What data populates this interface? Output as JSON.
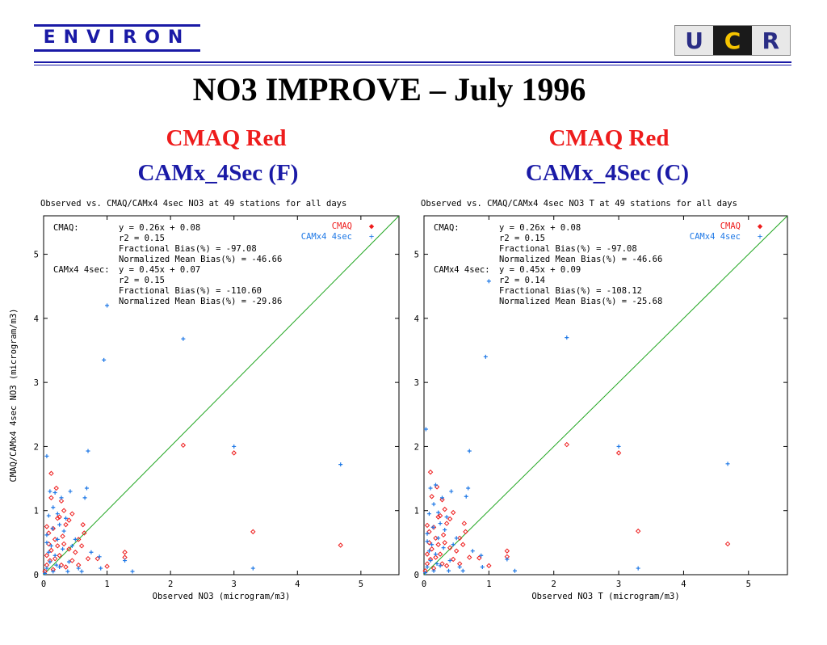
{
  "header": {
    "left_logo_text": "ENVIRON",
    "right_logo_letters": [
      "U",
      "C",
      "R"
    ],
    "title": "NO3 IMPROVE – July 1996"
  },
  "panels": [
    {
      "line1": "CMAQ Red",
      "line2": "CAMx_4Sec (F)"
    },
    {
      "line1": "CMAQ Red",
      "line2": "CAMx_4Sec (C)"
    }
  ],
  "colors": {
    "cmaq": "#ee1c1c",
    "camx": "#1e78e6",
    "line": "#1fa51f",
    "brand_blue": "#1a1aa6"
  },
  "chart_data": [
    {
      "type": "scatter",
      "title": "Observed vs. CMAQ/CAMx4 4sec NO3 at 49 stations for all days",
      "xlabel": "Observed NO3  (microgram/m3)",
      "ylabel": "CMAQ/CAMx4 4sec NO3  (microgram/m3)",
      "xlim": [
        0,
        5.6
      ],
      "ylim": [
        0,
        5.6
      ],
      "xticks": [
        "0",
        "1",
        "2",
        "3",
        "4",
        "5"
      ],
      "yticks": [
        "0",
        "1",
        "2",
        "3",
        "4",
        "5"
      ],
      "legend": [
        "CMAQ",
        "CAMx4 4sec"
      ],
      "stats": [
        [
          "CMAQ:",
          "y = 0.26x + 0.08"
        ],
        [
          "",
          "r2 = 0.15"
        ],
        [
          "",
          "Fractional Bias(%) = -97.08"
        ],
        [
          "",
          "Normalized Mean Bias(%) = -46.66"
        ],
        [
          "CAMx4 4sec:",
          "y = 0.45x + 0.07"
        ],
        [
          "",
          "r2 = 0.15"
        ],
        [
          "",
          "Fractional Bias(%) = -110.60"
        ],
        [
          "",
          "Normalized Mean Bias(%) = -29.86"
        ]
      ],
      "series": [
        {
          "name": "CMAQ",
          "points": [
            [
              2.2,
              2.02
            ],
            [
              3.0,
              1.9
            ],
            [
              3.3,
              0.67
            ],
            [
              4.68,
              0.46
            ],
            [
              1.28,
              0.35
            ],
            [
              1.28,
              0.27
            ],
            [
              0.85,
              0.25
            ],
            [
              1.0,
              0.13
            ],
            [
              0.62,
              0.78
            ],
            [
              0.64,
              0.65
            ],
            [
              0.55,
              0.55
            ],
            [
              0.6,
              0.45
            ],
            [
              0.45,
              0.95
            ],
            [
              0.4,
              0.85
            ],
            [
              0.32,
              1.0
            ],
            [
              0.12,
              1.58
            ],
            [
              0.2,
              1.35
            ],
            [
              0.28,
              1.15
            ],
            [
              0.25,
              0.9
            ],
            [
              0.35,
              0.78
            ],
            [
              0.5,
              0.35
            ],
            [
              0.7,
              0.25
            ],
            [
              0.3,
              0.6
            ],
            [
              0.15,
              0.72
            ],
            [
              0.18,
              0.55
            ],
            [
              0.08,
              0.48
            ],
            [
              0.22,
              0.45
            ],
            [
              0.12,
              0.38
            ],
            [
              0.05,
              0.3
            ],
            [
              0.25,
              0.3
            ],
            [
              0.1,
              0.22
            ],
            [
              0.05,
              0.15
            ],
            [
              0.4,
              0.4
            ],
            [
              0.45,
              0.22
            ],
            [
              0.35,
              0.12
            ],
            [
              0.02,
              0.05
            ],
            [
              0.15,
              0.08
            ],
            [
              0.28,
              0.15
            ],
            [
              0.08,
              0.65
            ],
            [
              0.55,
              0.15
            ],
            [
              0.22,
              0.88
            ],
            [
              0.12,
              1.2
            ],
            [
              0.05,
              0.75
            ],
            [
              0.18,
              0.25
            ],
            [
              0.32,
              0.48
            ]
          ]
        },
        {
          "name": "CAMx4 4sec",
          "points": [
            [
              1.0,
              4.2
            ],
            [
              2.2,
              3.68
            ],
            [
              0.95,
              3.35
            ],
            [
              3.0,
              2.0
            ],
            [
              4.68,
              1.72
            ],
            [
              0.7,
              1.93
            ],
            [
              0.05,
              1.85
            ],
            [
              3.3,
              0.1
            ],
            [
              1.28,
              0.22
            ],
            [
              1.4,
              0.05
            ],
            [
              0.68,
              1.35
            ],
            [
              0.42,
              1.3
            ],
            [
              0.1,
              1.3
            ],
            [
              0.18,
              1.28
            ],
            [
              0.28,
              1.2
            ],
            [
              0.15,
              1.05
            ],
            [
              0.65,
              1.2
            ],
            [
              0.08,
              0.92
            ],
            [
              0.25,
              0.78
            ],
            [
              0.35,
              0.88
            ],
            [
              0.5,
              0.55
            ],
            [
              0.75,
              0.35
            ],
            [
              0.88,
              0.28
            ],
            [
              0.12,
              0.45
            ],
            [
              0.22,
              0.55
            ],
            [
              0.05,
              0.62
            ],
            [
              0.3,
              0.4
            ],
            [
              0.18,
              0.3
            ],
            [
              0.1,
              0.2
            ],
            [
              0.05,
              0.1
            ],
            [
              0.25,
              0.12
            ],
            [
              0.4,
              0.2
            ],
            [
              0.55,
              0.1
            ],
            [
              0.15,
              0.05
            ],
            [
              0.02,
              0.02
            ],
            [
              0.32,
              0.68
            ],
            [
              0.45,
              0.45
            ],
            [
              0.6,
              0.05
            ],
            [
              0.08,
              0.35
            ],
            [
              0.2,
              0.15
            ],
            [
              0.14,
              0.72
            ],
            [
              0.38,
              0.05
            ],
            [
              0.9,
              0.1
            ],
            [
              0.05,
              0.5
            ],
            [
              0.22,
              0.95
            ]
          ]
        }
      ]
    },
    {
      "type": "scatter",
      "title": "Observed vs. CMAQ/CAMx4 4sec NO3 T at 49 stations for all days",
      "xlabel": "Observed NO3 T  (microgram/m3)",
      "ylabel": "",
      "xlim": [
        0,
        5.6
      ],
      "ylim": [
        0,
        5.6
      ],
      "xticks": [
        "0",
        "1",
        "2",
        "3",
        "4",
        "5"
      ],
      "yticks": [
        "0",
        "1",
        "2",
        "3",
        "4",
        "5"
      ],
      "legend": [
        "CMAQ",
        "CAMx4 4sec"
      ],
      "stats": [
        [
          "CMAQ:",
          "y = 0.26x + 0.08"
        ],
        [
          "",
          "r2 = 0.15"
        ],
        [
          "",
          "Fractional Bias(%) = -97.08"
        ],
        [
          "",
          "Normalized Mean Bias(%) = -46.66"
        ],
        [
          "CAMx4 4sec:",
          "y = 0.45x + 0.09"
        ],
        [
          "",
          "r2 = 0.14"
        ],
        [
          "",
          "Fractional Bias(%) = -108.12"
        ],
        [
          "",
          "Normalized Mean Bias(%) = -25.68"
        ]
      ],
      "series": [
        {
          "name": "CMAQ",
          "points": [
            [
              2.2,
              2.03
            ],
            [
              3.0,
              1.9
            ],
            [
              3.3,
              0.68
            ],
            [
              4.68,
              0.48
            ],
            [
              1.28,
              0.37
            ],
            [
              1.28,
              0.28
            ],
            [
              0.85,
              0.26
            ],
            [
              1.0,
              0.14
            ],
            [
              0.62,
              0.8
            ],
            [
              0.64,
              0.67
            ],
            [
              0.55,
              0.57
            ],
            [
              0.6,
              0.47
            ],
            [
              0.45,
              0.97
            ],
            [
              0.4,
              0.87
            ],
            [
              0.32,
              1.02
            ],
            [
              0.1,
              1.6
            ],
            [
              0.2,
              1.37
            ],
            [
              0.28,
              1.17
            ],
            [
              0.25,
              0.92
            ],
            [
              0.35,
              0.8
            ],
            [
              0.5,
              0.37
            ],
            [
              0.7,
              0.27
            ],
            [
              0.3,
              0.62
            ],
            [
              0.15,
              0.74
            ],
            [
              0.18,
              0.57
            ],
            [
              0.08,
              0.5
            ],
            [
              0.22,
              0.47
            ],
            [
              0.12,
              0.4
            ],
            [
              0.05,
              0.32
            ],
            [
              0.25,
              0.32
            ],
            [
              0.1,
              0.24
            ],
            [
              0.05,
              0.17
            ],
            [
              0.4,
              0.42
            ],
            [
              0.45,
              0.24
            ],
            [
              0.35,
              0.14
            ],
            [
              0.02,
              0.06
            ],
            [
              0.15,
              0.1
            ],
            [
              0.28,
              0.17
            ],
            [
              0.08,
              0.67
            ],
            [
              0.55,
              0.17
            ],
            [
              0.22,
              0.9
            ],
            [
              0.12,
              1.22
            ],
            [
              0.05,
              0.77
            ],
            [
              0.18,
              0.27
            ],
            [
              0.32,
              0.5
            ]
          ]
        },
        {
          "name": "CAMx4 4sec",
          "points": [
            [
              1.0,
              4.58
            ],
            [
              2.2,
              3.7
            ],
            [
              0.95,
              3.4
            ],
            [
              3.0,
              2.0
            ],
            [
              4.68,
              1.73
            ],
            [
              0.7,
              1.93
            ],
            [
              0.03,
              2.27
            ],
            [
              3.3,
              0.1
            ],
            [
              1.28,
              0.24
            ],
            [
              1.4,
              0.06
            ],
            [
              0.68,
              1.35
            ],
            [
              0.42,
              1.3
            ],
            [
              0.1,
              1.35
            ],
            [
              0.18,
              1.4
            ],
            [
              0.28,
              1.2
            ],
            [
              0.15,
              1.1
            ],
            [
              0.65,
              1.22
            ],
            [
              0.08,
              0.95
            ],
            [
              0.25,
              0.8
            ],
            [
              0.35,
              0.9
            ],
            [
              0.5,
              0.57
            ],
            [
              0.75,
              0.37
            ],
            [
              0.88,
              0.3
            ],
            [
              0.12,
              0.47
            ],
            [
              0.22,
              0.57
            ],
            [
              0.05,
              0.64
            ],
            [
              0.3,
              0.42
            ],
            [
              0.18,
              0.32
            ],
            [
              0.1,
              0.22
            ],
            [
              0.05,
              0.12
            ],
            [
              0.25,
              0.14
            ],
            [
              0.4,
              0.22
            ],
            [
              0.55,
              0.12
            ],
            [
              0.15,
              0.06
            ],
            [
              0.02,
              0.03
            ],
            [
              0.32,
              0.7
            ],
            [
              0.45,
              0.47
            ],
            [
              0.6,
              0.06
            ],
            [
              0.08,
              0.37
            ],
            [
              0.2,
              0.17
            ],
            [
              0.14,
              0.74
            ],
            [
              0.38,
              0.06
            ],
            [
              0.9,
              0.12
            ],
            [
              0.05,
              0.52
            ],
            [
              0.22,
              0.97
            ]
          ]
        }
      ]
    }
  ]
}
